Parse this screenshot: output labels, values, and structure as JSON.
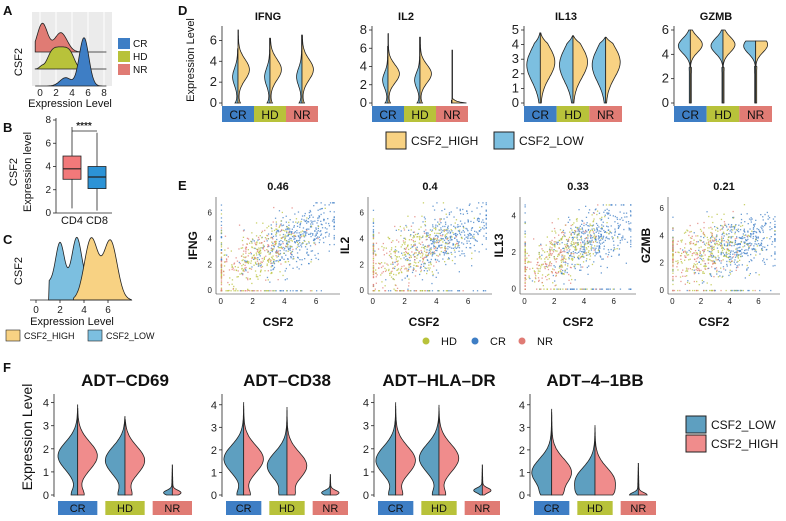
{
  "colors": {
    "CR": "#3e7ec5",
    "HD": "#b8c23a",
    "NR": "#e07b74",
    "CSF2_HIGH": "#f8d283",
    "CSF2_LOW": "#7cbfe0",
    "ADT_LOW": "#5e9fc0",
    "ADT_HIGH": "#f08c8c",
    "CD4": "#f2797a",
    "CD8": "#2c93d6"
  },
  "panels": {
    "A": "A",
    "B": "B",
    "C": "C",
    "D": "D",
    "E": "E",
    "F": "F"
  },
  "chart_data": [
    {
      "id": "A",
      "type": "area",
      "title": "",
      "ylabel": "CSF2",
      "xlabel": "Expression Level",
      "x_ticks": [
        0,
        2,
        4,
        6,
        8
      ],
      "xlim": [
        -1,
        9
      ],
      "legend": [
        "CR",
        "HD",
        "NR"
      ],
      "series": [
        {
          "name": "CR",
          "peak_x": 5.5,
          "density": "high peak near 5.5"
        },
        {
          "name": "HD",
          "peak_x": 2.5,
          "density": "broad plateau 1-5"
        },
        {
          "name": "NR",
          "peak_x": 0.3,
          "density": "peak near 0, shoulder near 2.5"
        }
      ]
    },
    {
      "id": "B",
      "type": "box",
      "ylabel": "CSF2\nExpression level",
      "categories": [
        "CD4",
        "CD8"
      ],
      "y_ticks": [
        0,
        2,
        4,
        6,
        8
      ],
      "ylim": [
        0,
        8
      ],
      "significance": "****",
      "boxes": [
        {
          "name": "CD4",
          "whisker_low": 0.4,
          "q1": 2.9,
          "median": 3.8,
          "q3": 4.9,
          "whisker_high": 7.4
        },
        {
          "name": "CD8",
          "whisker_low": 0.2,
          "q1": 2.1,
          "median": 3.1,
          "q3": 4.0,
          "whisker_high": 6.9
        }
      ]
    },
    {
      "id": "C",
      "type": "area",
      "ylabel": "CSF2",
      "xlabel": "Expression Level",
      "x_ticks": [
        0,
        2,
        4,
        6
      ],
      "xlim": [
        -0.5,
        8
      ],
      "legend": [
        "CSF2_HIGH",
        "CSF2_LOW"
      ],
      "series": [
        {
          "name": "CSF2_LOW",
          "range": [
            1.2,
            4.0
          ],
          "peaks": [
            2.0,
            3.3
          ]
        },
        {
          "name": "CSF2_HIGH",
          "range": [
            3.2,
            7.8
          ],
          "peaks": [
            4.6,
            6.2
          ]
        }
      ]
    },
    {
      "id": "D",
      "type": "violin",
      "ylabel": "Expression Level",
      "categories": [
        "CR",
        "HD",
        "NR"
      ],
      "legend": [
        "CSF2_HIGH",
        "CSF2_LOW"
      ],
      "subplots": [
        {
          "title": "IFNG",
          "ylim": [
            0,
            7
          ],
          "y_ticks": [
            0,
            2,
            4,
            6
          ],
          "groups": [
            {
              "cat": "CR",
              "low_max": 5.2,
              "high_max": 7.0
            },
            {
              "cat": "HD",
              "low_max": 6.2,
              "high_max": 6.2
            },
            {
              "cat": "NR",
              "low_max": 6.5,
              "high_max": 6.5
            }
          ]
        },
        {
          "title": "IL2",
          "ylim": [
            0,
            8
          ],
          "y_ticks": [
            0,
            2,
            4,
            6,
            8
          ],
          "groups": [
            {
              "cat": "CR",
              "low_max": 6.2,
              "high_max": 7.6
            },
            {
              "cat": "HD",
              "low_max": 7.2,
              "high_max": 7.2
            },
            {
              "cat": "NR",
              "low_max": 0.3,
              "high_max": 5.8
            }
          ]
        },
        {
          "title": "IL13",
          "ylim": [
            0,
            5
          ],
          "y_ticks": [
            0,
            1,
            2,
            3,
            4,
            5
          ],
          "groups": [
            {
              "cat": "CR",
              "low_max": 4.8,
              "high_max": 4.8
            },
            {
              "cat": "HD",
              "low_max": 4.6,
              "high_max": 4.6
            },
            {
              "cat": "NR",
              "low_max": 4.5,
              "high_max": 4.5
            }
          ]
        },
        {
          "title": "GZMB",
          "ylim": [
            0,
            6
          ],
          "y_ticks": [
            0,
            2,
            4,
            6
          ],
          "groups": [
            {
              "cat": "CR",
              "low_max": 6.0,
              "high_max": 6.0
            },
            {
              "cat": "HD",
              "low_max": 6.0,
              "high_max": 6.0
            },
            {
              "cat": "NR",
              "low_max": 5.1,
              "high_max": 5.1
            }
          ]
        }
      ]
    },
    {
      "id": "E",
      "type": "scatter",
      "xlabel": "CSF2",
      "legend": [
        "HD",
        "CR",
        "NR"
      ],
      "subplots": [
        {
          "title": "0.46",
          "ylabel": "IFNG",
          "x_ticks": [
            0,
            2,
            4,
            6
          ],
          "y_ticks": [
            0,
            2,
            4,
            6
          ],
          "xlim": [
            -0.3,
            7.5
          ],
          "ylim": [
            -0.3,
            7.2
          ],
          "slope": 0.55
        },
        {
          "title": "0.4",
          "ylabel": "IL2",
          "x_ticks": [
            0,
            2,
            4,
            6
          ],
          "y_ticks": [
            0,
            2,
            4,
            6
          ],
          "xlim": [
            -0.3,
            7.5
          ],
          "ylim": [
            -0.3,
            7.2
          ],
          "slope": 0.5
        },
        {
          "title": "0.33",
          "ylabel": "IL13",
          "x_ticks": [
            0,
            2,
            4,
            6
          ],
          "y_ticks": [
            0,
            2,
            4
          ],
          "xlim": [
            -0.3,
            7.5
          ],
          "ylim": [
            -0.3,
            5.0
          ],
          "slope": 0.35
        },
        {
          "title": "0.21",
          "ylabel": "GZMB",
          "x_ticks": [
            0,
            2,
            4,
            6
          ],
          "y_ticks": [
            0,
            2,
            4,
            6
          ],
          "xlim": [
            -0.3,
            7.5
          ],
          "ylim": [
            -0.3,
            6.8
          ],
          "slope": 0.25
        }
      ]
    },
    {
      "id": "F",
      "type": "violin",
      "ylabel": "Expression Level",
      "categories": [
        "CR",
        "HD",
        "NR"
      ],
      "legend": [
        "CSF2_LOW",
        "CSF2_HIGH"
      ],
      "subplots": [
        {
          "title": "ADT–CD69",
          "ylim": [
            0,
            4.2
          ],
          "y_ticks": [
            0,
            1,
            2,
            3,
            4
          ],
          "groups": [
            {
              "cat": "CR",
              "max": 3.9,
              "mode": 1.7
            },
            {
              "cat": "HD",
              "max": 3.4,
              "mode": 1.5
            },
            {
              "cat": "NR",
              "max": 1.3,
              "mode": 0.1
            }
          ]
        },
        {
          "title": "ADT–CD38",
          "ylim": [
            0,
            4.3
          ],
          "y_ticks": [
            0,
            1,
            2,
            3,
            4
          ],
          "groups": [
            {
              "cat": "CR",
              "max": 4.1,
              "mode": 1.6
            },
            {
              "cat": "HD",
              "max": 3.9,
              "mode": 1.3
            },
            {
              "cat": "NR",
              "max": 0.9,
              "mode": 0.1
            }
          ]
        },
        {
          "title": "ADT–HLA–DR",
          "ylim": [
            0,
            4.2
          ],
          "y_ticks": [
            0,
            1,
            2,
            3,
            4
          ],
          "groups": [
            {
              "cat": "CR",
              "max": 4.0,
              "mode": 1.5
            },
            {
              "cat": "HD",
              "max": 3.9,
              "mode": 1.6
            },
            {
              "cat": "NR",
              "max": 1.3,
              "mode": 0.2
            }
          ]
        },
        {
          "title": "ADT–4–1BB",
          "ylim": [
            0,
            4.3
          ],
          "y_ticks": [
            0,
            1,
            2,
            3,
            4
          ],
          "groups": [
            {
              "cat": "CR",
              "max": 3.8,
              "mode": 1.0
            },
            {
              "cat": "HD",
              "max": 3.1,
              "mode": 0.6
            },
            {
              "cat": "NR",
              "max": 1.4,
              "mode": 0.0
            }
          ]
        }
      ]
    }
  ]
}
